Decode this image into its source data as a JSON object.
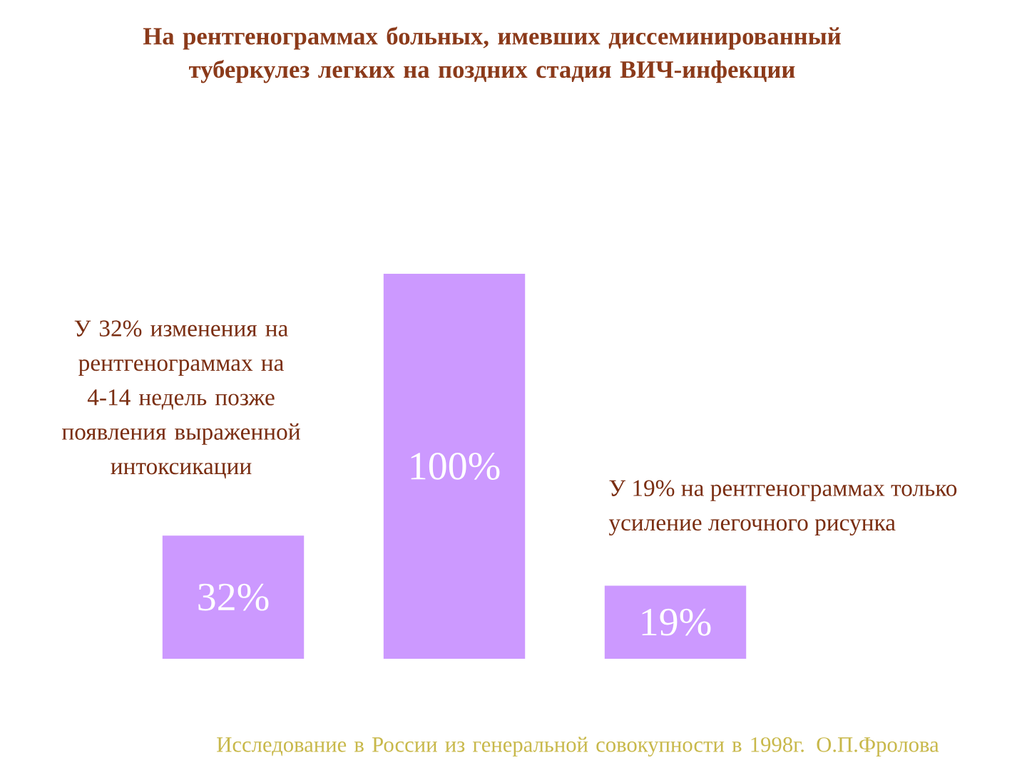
{
  "chart_data": {
    "type": "bar",
    "title": "На рентгенограммах больных, имевших диссеминированный туберкулез легких на поздних стадия ВИЧ-инфекции",
    "categories": [
      null,
      null,
      null
    ],
    "values": [
      32,
      100,
      19
    ],
    "value_labels": [
      "32%",
      "100%",
      "19%"
    ],
    "color": "#cc99ff",
    "annotations": [
      "У 32% изменения на рентгенограммах на 4-14 недель позже появления выраженной интоксикации",
      "У 19% на рентгенограммах только усиление легочного рисунка",
      "Исследование в России из генеральной совокупности в 1998г. О.П.Фролова"
    ]
  }
}
